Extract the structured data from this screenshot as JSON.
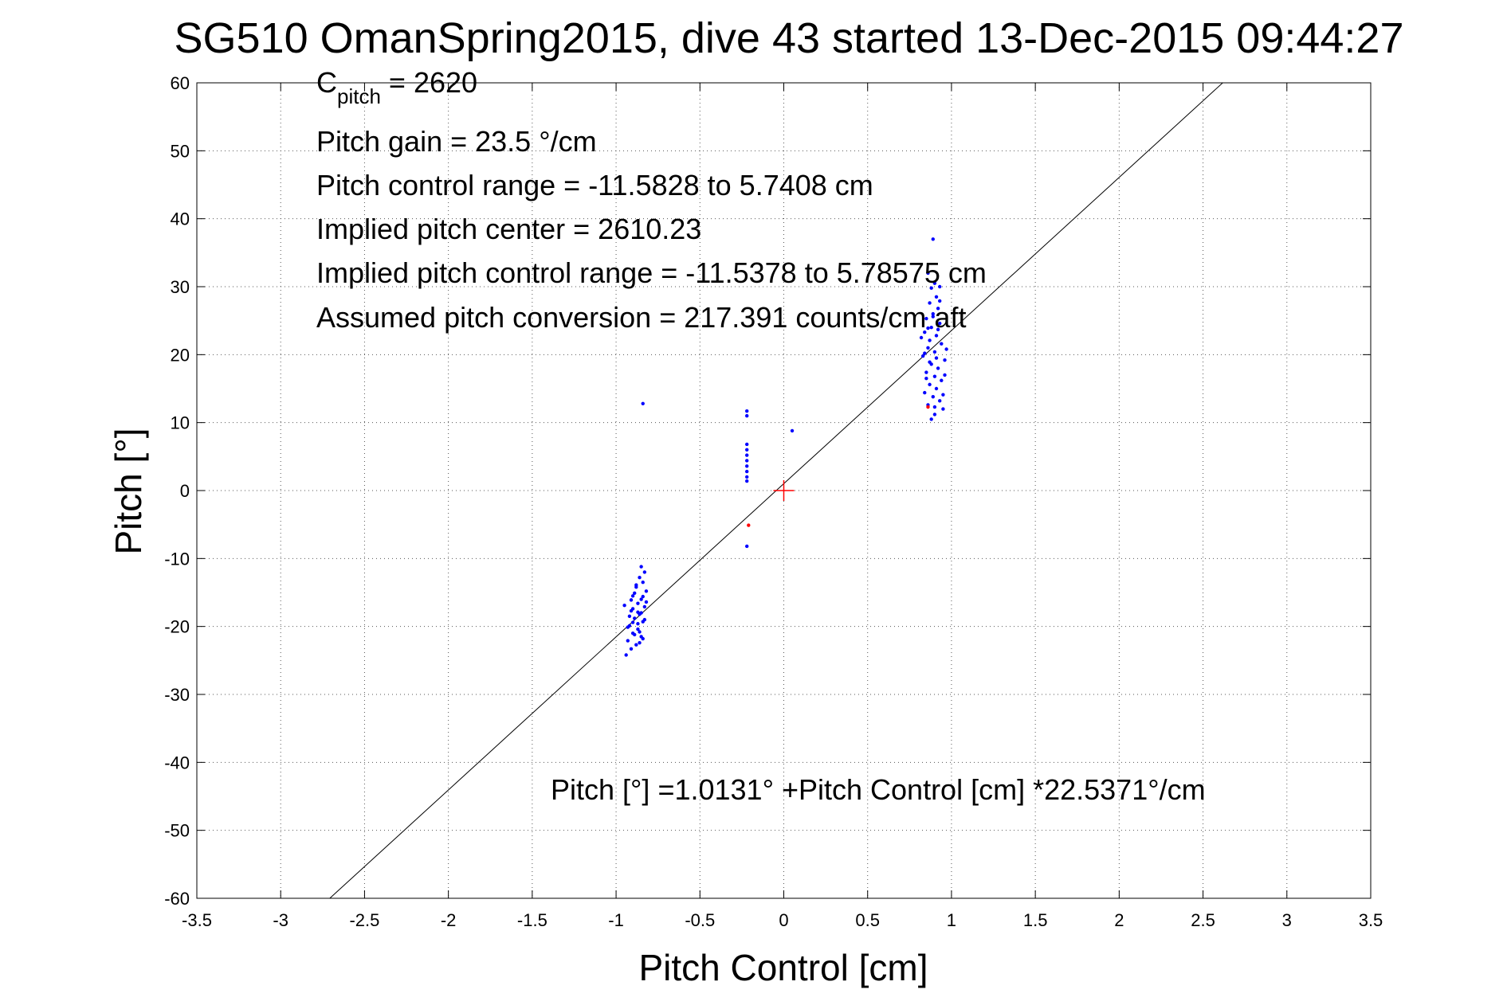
{
  "chart_data": {
    "type": "scatter",
    "title": "SG510 OmanSpring2015, dive 43 started 13-Dec-2015 09:44:27",
    "xlabel": "Pitch Control [cm]",
    "ylabel": "Pitch [°]",
    "xlim": [
      -3.5,
      3.5
    ],
    "ylim": [
      -60,
      60
    ],
    "xticks": [
      -3.5,
      -3,
      -2.5,
      -2,
      -1.5,
      -1,
      -0.5,
      0,
      0.5,
      1,
      1.5,
      2,
      2.5,
      3,
      3.5
    ],
    "xtick_labels": [
      "-3.5",
      "-3",
      "-2.5",
      "-2",
      "-1.5",
      "-1",
      "-0.5",
      "0",
      "0.5",
      "1",
      "1.5",
      "2",
      "2.5",
      "3",
      "3.5"
    ],
    "yticks": [
      -60,
      -50,
      -40,
      -30,
      -20,
      -10,
      0,
      10,
      20,
      30,
      40,
      50,
      60
    ],
    "ytick_labels": [
      "-60",
      "-50",
      "-40",
      "-30",
      "-20",
      "-10",
      "0",
      "10",
      "20",
      "30",
      "40",
      "50",
      "60"
    ],
    "grid": true,
    "fit_line": {
      "intercept": 1.0131,
      "slope": 22.5371,
      "color": "#000000"
    },
    "center_marker": {
      "x": 0,
      "y": 0,
      "color": "#ff0000"
    },
    "annotations": {
      "c_pitch_symbol": "C",
      "c_pitch_subscript": "pitch",
      "c_pitch_value": " = 2620",
      "pitch_gain": "Pitch gain = 23.5 °/cm",
      "control_range": "Pitch control range = -11.5828 to 5.7408 cm",
      "implied_center": "Implied pitch center = 2610.23",
      "implied_range": "Implied pitch control range = -11.5378 to 5.78575 cm",
      "conversion": "Assumed pitch conversion = 217.391 counts/cm aft",
      "fit_equation": "Pitch [°] =1.0131° +Pitch Control [cm] *22.5371°/cm"
    },
    "series": [
      {
        "color": "#0000ff",
        "points": [
          [
            -0.84,
            12.8
          ],
          [
            -0.22,
            11.7
          ],
          [
            -0.22,
            11.0
          ],
          [
            -0.22,
            6.8
          ],
          [
            -0.22,
            6.0
          ],
          [
            -0.22,
            5.2
          ],
          [
            -0.22,
            4.4
          ],
          [
            -0.22,
            3.6
          ],
          [
            -0.22,
            2.8
          ],
          [
            -0.22,
            2.0
          ],
          [
            -0.22,
            1.4
          ],
          [
            -0.22,
            -8.2
          ],
          [
            0.05,
            8.8
          ],
          [
            0.89,
            37.0
          ],
          [
            0.86,
            32.0
          ],
          [
            0.9,
            30.5
          ],
          [
            0.88,
            29.8
          ],
          [
            0.91,
            28.5
          ],
          [
            0.87,
            27.6
          ],
          [
            0.92,
            26.8
          ],
          [
            0.89,
            26.0
          ],
          [
            0.85,
            25.3
          ],
          [
            0.93,
            24.6
          ],
          [
            0.88,
            24.0
          ],
          [
            0.84,
            23.3
          ],
          [
            0.91,
            22.8
          ],
          [
            0.87,
            22.1
          ],
          [
            0.94,
            21.6
          ],
          [
            0.86,
            21.0
          ],
          [
            0.9,
            20.4
          ],
          [
            0.83,
            19.8
          ],
          [
            0.96,
            19.2
          ],
          [
            0.88,
            18.6
          ],
          [
            0.92,
            18.0
          ],
          [
            0.85,
            17.4
          ],
          [
            0.9,
            16.8
          ],
          [
            0.94,
            16.2
          ],
          [
            0.87,
            15.6
          ],
          [
            0.91,
            15.0
          ],
          [
            0.84,
            14.4
          ],
          [
            0.89,
            13.8
          ],
          [
            0.93,
            13.2
          ],
          [
            0.86,
            12.6
          ],
          [
            0.95,
            12.0
          ],
          [
            0.9,
            11.2
          ],
          [
            0.88,
            10.5
          ],
          [
            0.97,
            20.8
          ],
          [
            0.82,
            22.5
          ],
          [
            0.93,
            30.0
          ],
          [
            0.87,
            18.9
          ],
          [
            0.92,
            23.7
          ],
          [
            0.85,
            16.5
          ],
          [
            0.95,
            14.1
          ],
          [
            0.89,
            25.6
          ],
          [
            0.84,
            20.2
          ],
          [
            0.91,
            19.5
          ],
          [
            0.96,
            17.0
          ],
          [
            0.86,
            23.9
          ],
          [
            0.9,
            12.3
          ],
          [
            0.93,
            27.9
          ],
          [
            -0.85,
            -11.2
          ],
          [
            -0.83,
            -12.0
          ],
          [
            -0.86,
            -12.8
          ],
          [
            -0.84,
            -13.5
          ],
          [
            -0.88,
            -14.2
          ],
          [
            -0.82,
            -14.8
          ],
          [
            -0.9,
            -15.5
          ],
          [
            -0.85,
            -16.0
          ],
          [
            -0.87,
            -16.6
          ],
          [
            -0.83,
            -17.1
          ],
          [
            -0.91,
            -17.7
          ],
          [
            -0.86,
            -18.2
          ],
          [
            -0.89,
            -18.8
          ],
          [
            -0.84,
            -19.3
          ],
          [
            -0.92,
            -19.9
          ],
          [
            -0.87,
            -20.4
          ],
          [
            -0.9,
            -21.0
          ],
          [
            -0.85,
            -21.5
          ],
          [
            -0.93,
            -22.1
          ],
          [
            -0.88,
            -22.7
          ],
          [
            -0.91,
            -23.3
          ],
          [
            -0.94,
            -24.2
          ],
          [
            -0.86,
            -20.8
          ],
          [
            -0.82,
            -16.4
          ],
          [
            -0.89,
            -15.1
          ],
          [
            -0.95,
            -16.9
          ],
          [
            -0.87,
            -19.6
          ],
          [
            -0.84,
            -21.8
          ],
          [
            -0.9,
            -17.4
          ],
          [
            -0.92,
            -18.5
          ],
          [
            -0.83,
            -19.0
          ],
          [
            -0.88,
            -13.9
          ],
          [
            -0.86,
            -22.4
          ],
          [
            -0.93,
            -20.1
          ],
          [
            -0.85,
            -18.0
          ],
          [
            -0.91,
            -16.1
          ],
          [
            -0.89,
            -21.2
          ],
          [
            -0.84,
            -15.6
          ],
          [
            -0.87,
            -17.9
          ],
          [
            -0.9,
            -19.4
          ]
        ]
      },
      {
        "color": "#ff0000",
        "points": [
          [
            -0.21,
            -5.1
          ],
          [
            0.86,
            12.3
          ]
        ]
      }
    ]
  }
}
